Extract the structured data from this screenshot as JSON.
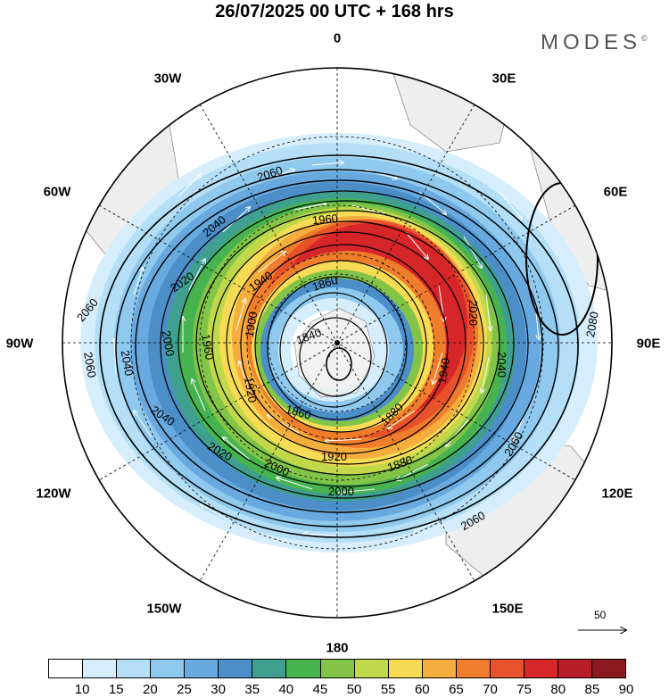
{
  "title": "26/07/2025  00 UTC  + 168 hrs",
  "brand": "MODES",
  "brand_mark": "©",
  "longitude_labels": {
    "lon_0": "0",
    "lon_30e": "30E",
    "lon_60e": "60E",
    "lon_90e": "90E",
    "lon_120e": "120E",
    "lon_150e": "150E",
    "lon_180": "180",
    "lon_150w": "150W",
    "lon_120w": "120W",
    "lon_90w": "90W",
    "lon_60w": "60W",
    "lon_30w": "30W"
  },
  "reference_vector": {
    "value": "50"
  },
  "colorbar": {
    "ticks": [
      "10",
      "15",
      "20",
      "25",
      "30",
      "35",
      "40",
      "45",
      "50",
      "55",
      "60",
      "65",
      "70",
      "75",
      "80",
      "85",
      "90"
    ],
    "colors": [
      "#ffffff",
      "#d6eefb",
      "#b5dff7",
      "#90c9ee",
      "#68a9df",
      "#4b8ec8",
      "#3fa08f",
      "#47b34f",
      "#82c447",
      "#c0d84a",
      "#f7db55",
      "#f5ae3e",
      "#f07d2c",
      "#e8522a",
      "#d7262a",
      "#b71e2a",
      "#8a1a20"
    ]
  },
  "contour_labels": {
    "c2060_top": "2060",
    "c2040_top": "2040",
    "c1960_top": "1960",
    "c2020_left": "2020",
    "c1940_left": "1940",
    "c1900_left": "1900",
    "c1860_top": "1860",
    "c1840_center": "1840",
    "c2060_left": "2060",
    "c2040_left": "2040",
    "c2060_left2": "2060",
    "c2000_left": "2000",
    "c1960_left": "1960",
    "c1920_left": "1920",
    "c1860_bottom": "1860",
    "c1880_right": "1880",
    "c2020_right": "2020",
    "c1940_right": "1940",
    "c2040_right": "2040",
    "c2080_east": "2080",
    "c2060_right": "2060",
    "c2040_bottom": "2040",
    "c2020_bottom": "2020",
    "c2000_bottom": "2000",
    "c1920_bottom": "1920",
    "c1880_bottom": "1880",
    "c2000_bottom2": "2000",
    "c2060_bottom": "2060"
  }
}
